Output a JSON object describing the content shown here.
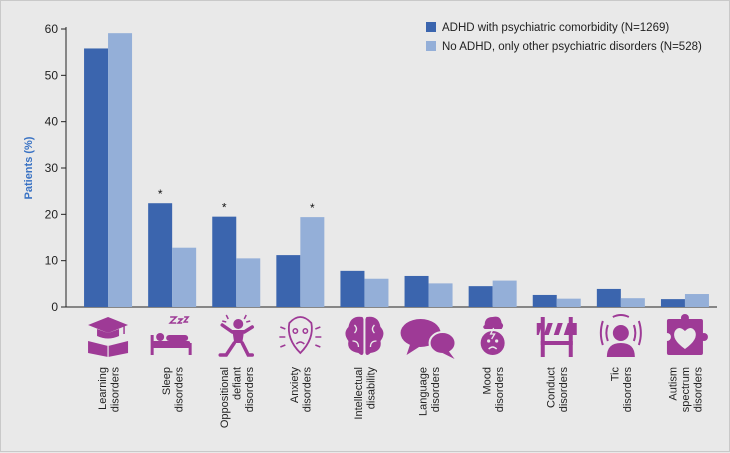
{
  "chart_data": {
    "type": "bar",
    "title": "",
    "xlabel": "",
    "ylabel": "Patients (%)",
    "ylim": [
      0,
      60
    ],
    "yticks": [
      0,
      10,
      20,
      30,
      40,
      50,
      60
    ],
    "grid": false,
    "legend_position": "top-right",
    "categories": [
      [
        "Learning",
        "disorders"
      ],
      [
        "Sleep",
        "disorders"
      ],
      [
        "Oppositional",
        "defiant",
        "disorders"
      ],
      [
        "Anxiety",
        "disorders"
      ],
      [
        "Intellectual",
        "disability"
      ],
      [
        "Language",
        "disorders"
      ],
      [
        "Mood",
        "disorders"
      ],
      [
        "Conduct",
        "disorders"
      ],
      [
        "Tic",
        "disorders"
      ],
      [
        "Autism",
        "spectrum",
        "disorders"
      ]
    ],
    "icons": [
      "graduation-cap-book-icon",
      "sleeping-person-icon",
      "angry-person-icon",
      "anxious-face-icon",
      "brain-icon",
      "speech-bubbles-icon",
      "stormy-head-icon",
      "barrier-icon",
      "head-soundwaves-icon",
      "puzzle-heart-icon"
    ],
    "series": [
      {
        "name": "ADHD with psychiatric comorbidity (N=1269)",
        "color": "#3b65ae",
        "values": [
          55.8,
          22.4,
          19.5,
          11.2,
          7.8,
          6.7,
          4.5,
          2.6,
          3.9,
          1.7
        ]
      },
      {
        "name": "No ADHD, only other psychiatric disorders (N=528)",
        "color": "#94afd8",
        "values": [
          59.1,
          12.8,
          10.5,
          19.4,
          6.1,
          5.1,
          5.7,
          1.8,
          1.9,
          2.8
        ]
      }
    ],
    "annotations": [
      {
        "category_index": 1,
        "text": "*"
      },
      {
        "category_index": 2,
        "text": "*"
      },
      {
        "category_index": 3,
        "text": "*"
      }
    ],
    "icon_color": "#9e3a96"
  }
}
